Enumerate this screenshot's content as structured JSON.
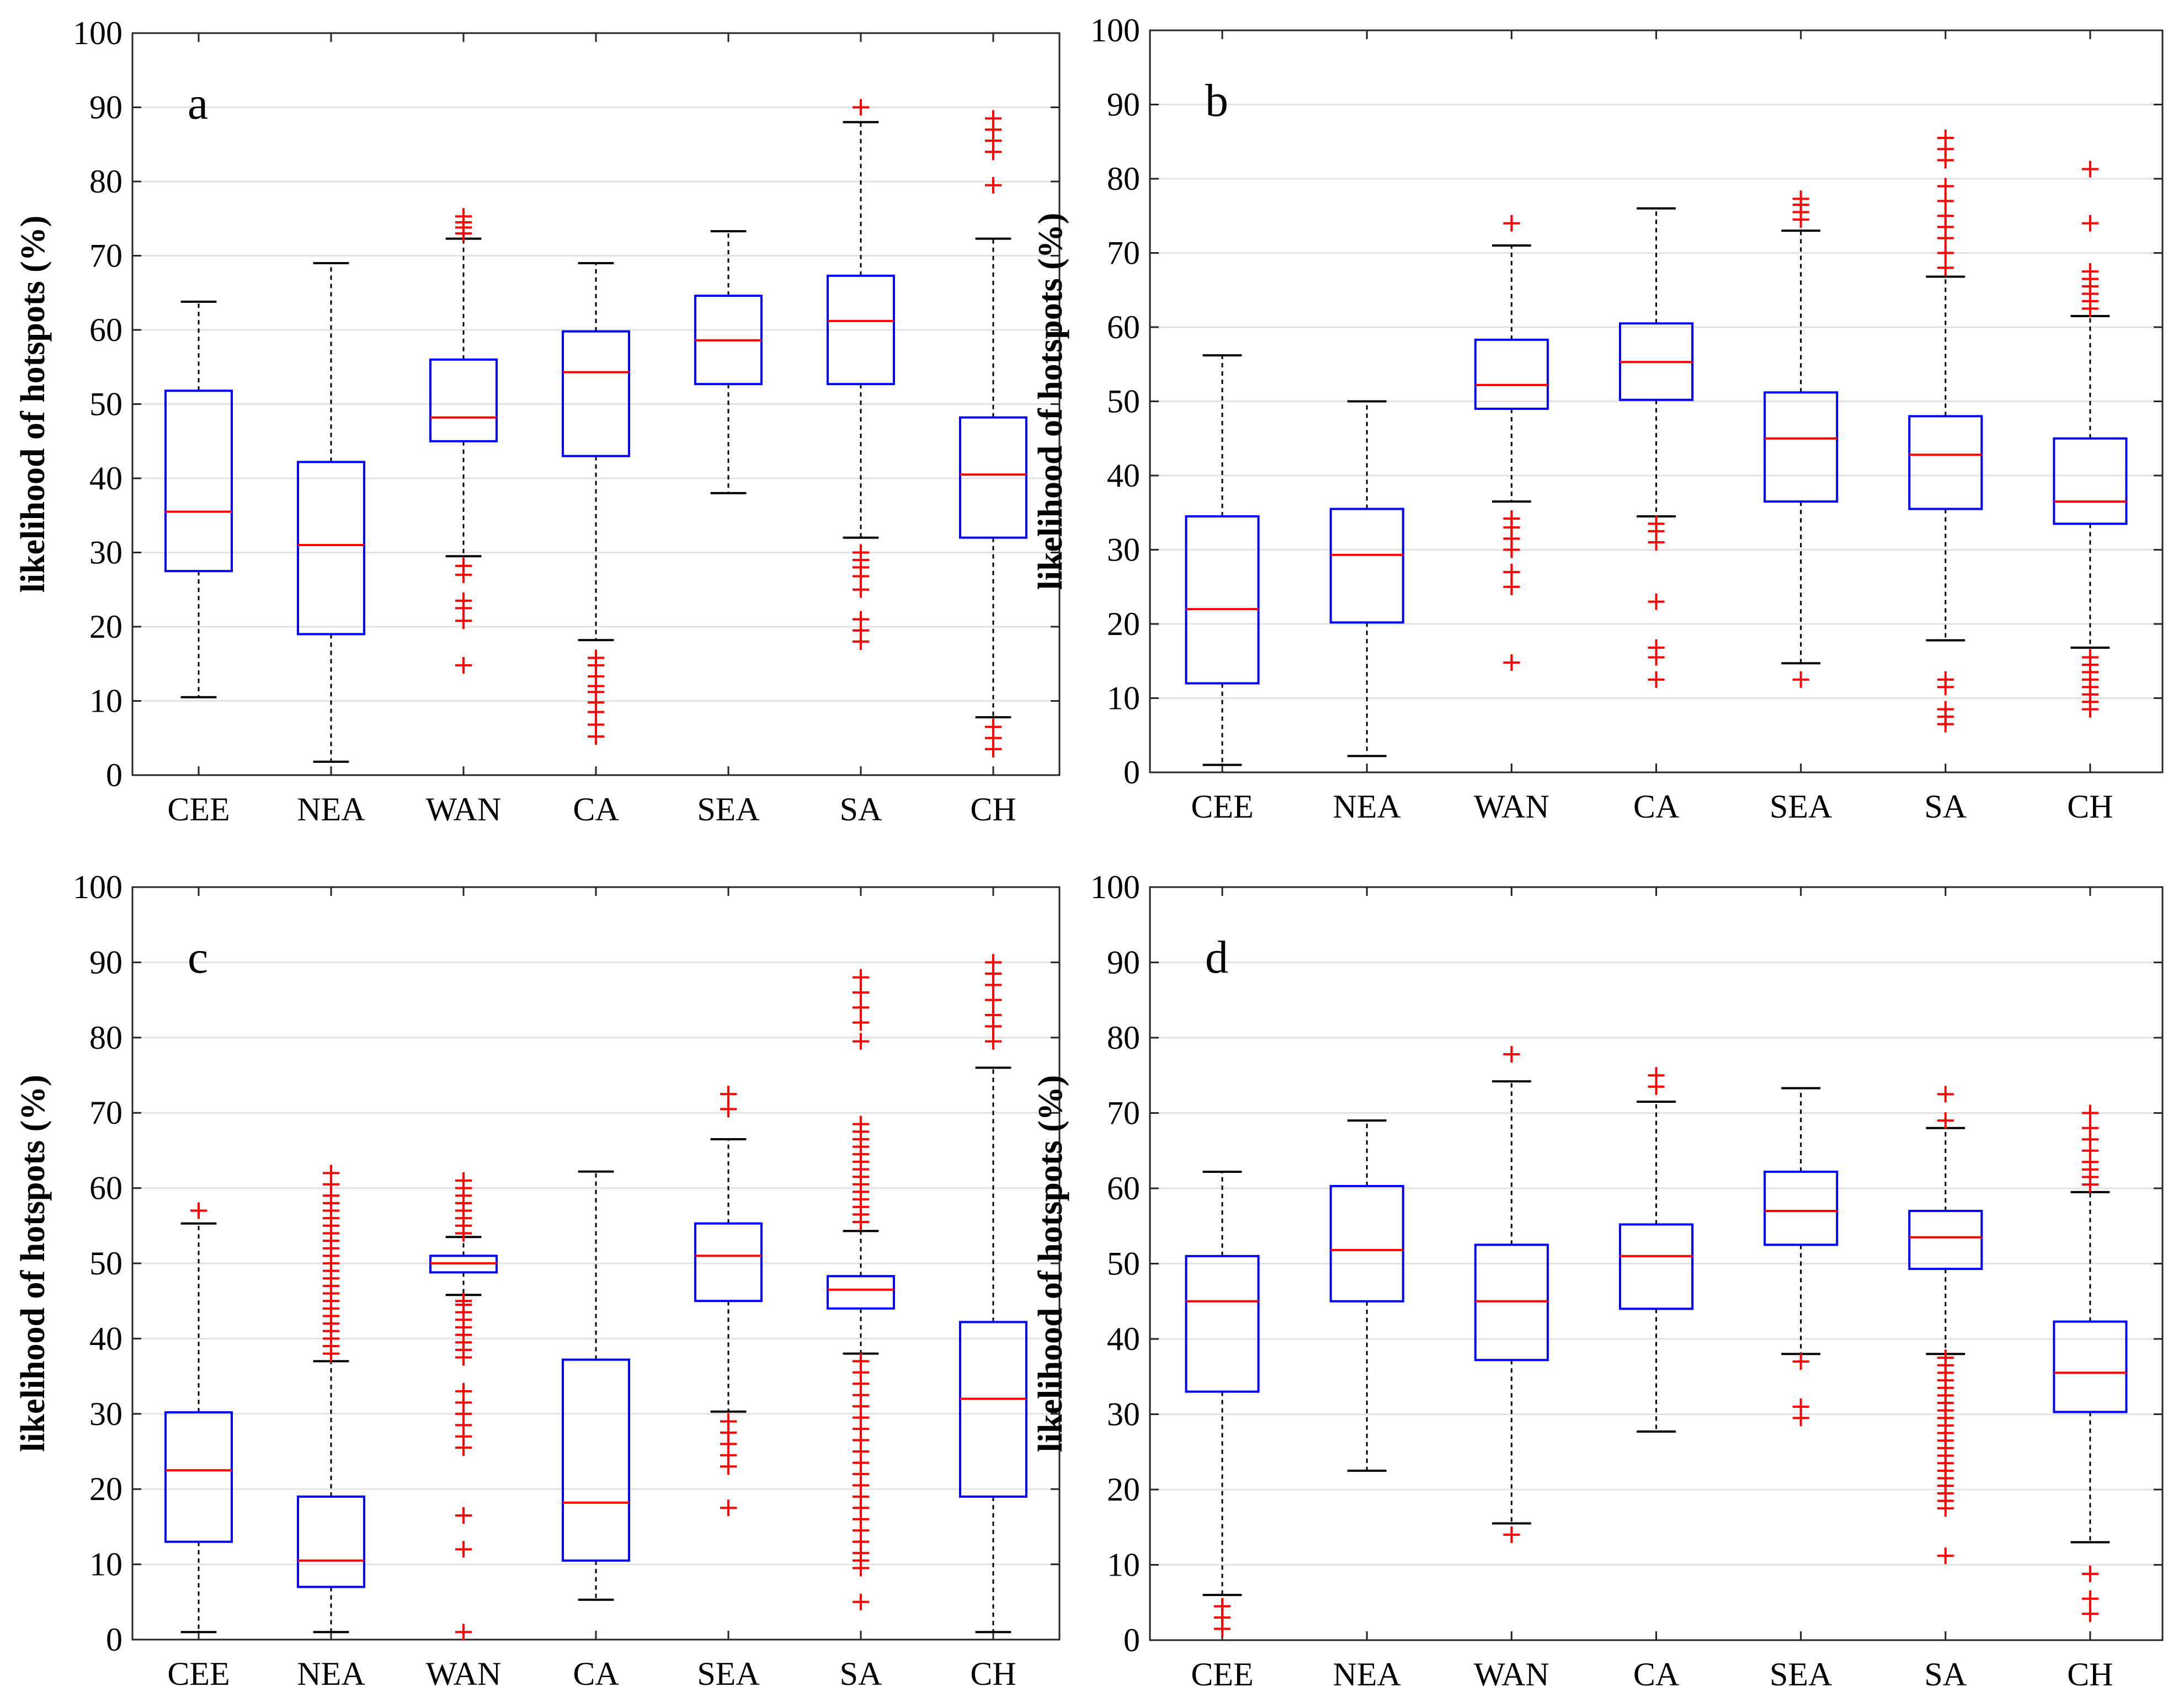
{
  "colors": {
    "box": "#0000ff",
    "median": "#ff0000",
    "outlier": "#ff0000",
    "whisker": "#000000",
    "grid": "#e2e2e2"
  },
  "chart_data": [
    {
      "type": "box",
      "panel_label": "a",
      "ylabel": "likelihood of hotspots (%)",
      "ylim": [
        0,
        100
      ],
      "yticks": [
        0,
        10,
        20,
        30,
        40,
        50,
        60,
        70,
        80,
        90,
        100
      ],
      "categories": [
        "CEE",
        "NEA",
        "WAN",
        "CA",
        "SEA",
        "SA",
        "CH"
      ],
      "boxes": [
        {
          "min": 10.5,
          "q1": 27.5,
          "median": 35.5,
          "q3": 51.8,
          "max": 63.8,
          "outliers": []
        },
        {
          "min": 1.8,
          "q1": 19.0,
          "median": 31.0,
          "q3": 42.2,
          "max": 69.0,
          "outliers": []
        },
        {
          "min": 29.5,
          "q1": 45.0,
          "median": 48.2,
          "q3": 56.0,
          "max": 72.3,
          "outliers": [
            14.8,
            20.8,
            22.5,
            23.5,
            27.0,
            28.2,
            73.0,
            73.8,
            74.5,
            75.3
          ]
        },
        {
          "min": 18.2,
          "q1": 43.0,
          "median": 54.3,
          "q3": 59.8,
          "max": 69.0,
          "outliers": [
            5.2,
            6.8,
            8.5,
            9.8,
            11.2,
            12.0,
            13.3,
            14.8,
            15.8
          ]
        },
        {
          "min": 38.0,
          "q1": 52.7,
          "median": 58.6,
          "q3": 64.6,
          "max": 73.3,
          "outliers": []
        },
        {
          "min": 32.0,
          "q1": 52.7,
          "median": 61.2,
          "q3": 67.3,
          "max": 88.0,
          "outliers": [
            18.0,
            19.5,
            21.0,
            25.0,
            26.8,
            28.0,
            29.0,
            30.0,
            90.0
          ]
        },
        {
          "min": 7.8,
          "q1": 32.0,
          "median": 40.5,
          "q3": 48.2,
          "max": 72.3,
          "outliers": [
            3.5,
            5.0,
            6.5,
            79.5,
            84.0,
            85.5,
            87.0,
            88.5
          ]
        }
      ]
    },
    {
      "type": "box",
      "panel_label": "b",
      "ylabel": "likelihood of hotspots (%)",
      "ylim": [
        0,
        100
      ],
      "yticks": [
        0,
        10,
        20,
        30,
        40,
        50,
        60,
        70,
        80,
        90,
        100
      ],
      "categories": [
        "CEE",
        "NEA",
        "WAN",
        "CA",
        "SEA",
        "SA",
        "CH"
      ],
      "boxes": [
        {
          "min": 1.0,
          "q1": 12.0,
          "median": 22.0,
          "q3": 34.5,
          "max": 56.2,
          "outliers": []
        },
        {
          "min": 2.2,
          "q1": 20.2,
          "median": 29.3,
          "q3": 35.5,
          "max": 50.0,
          "outliers": []
        },
        {
          "min": 36.5,
          "q1": 49.0,
          "median": 52.2,
          "q3": 58.3,
          "max": 71.0,
          "outliers": [
            14.8,
            25.0,
            27.0,
            30.0,
            31.5,
            33.0,
            34.2,
            74.0
          ]
        },
        {
          "min": 34.5,
          "q1": 50.2,
          "median": 55.3,
          "q3": 60.5,
          "max": 76.0,
          "outliers": [
            12.5,
            15.5,
            16.8,
            23.0,
            31.0,
            32.5,
            33.5
          ]
        },
        {
          "min": 14.7,
          "q1": 36.5,
          "median": 45.0,
          "q3": 51.2,
          "max": 73.0,
          "outliers": [
            12.5,
            74.5,
            75.5,
            76.5,
            77.3
          ]
        },
        {
          "min": 17.8,
          "q1": 35.5,
          "median": 42.8,
          "q3": 48.0,
          "max": 66.8,
          "outliers": [
            6.5,
            7.5,
            8.5,
            11.5,
            12.5,
            68.0,
            70.0,
            72.0,
            73.5,
            75.0,
            77.0,
            79.0,
            82.5,
            84.0,
            85.5
          ]
        },
        {
          "min": 16.8,
          "q1": 33.5,
          "median": 36.5,
          "q3": 45.0,
          "max": 61.5,
          "outliers": [
            8.5,
            9.5,
            10.5,
            11.5,
            12.5,
            13.5,
            14.5,
            15.5,
            62.5,
            63.5,
            64.5,
            65.5,
            66.5,
            67.5,
            74.0,
            81.3
          ]
        }
      ]
    },
    {
      "type": "box",
      "panel_label": "c",
      "ylabel": "likelihood of hotspots (%)",
      "ylim": [
        0,
        100
      ],
      "yticks": [
        0,
        10,
        20,
        30,
        40,
        50,
        60,
        70,
        80,
        90,
        100
      ],
      "categories": [
        "CEE",
        "NEA",
        "WAN",
        "CA",
        "SEA",
        "SA",
        "CH"
      ],
      "boxes": [
        {
          "min": 1.0,
          "q1": 13.0,
          "median": 22.5,
          "q3": 30.2,
          "max": 55.3,
          "outliers": [
            57.0
          ]
        },
        {
          "min": 1.0,
          "q1": 7.0,
          "median": 10.5,
          "q3": 19.0,
          "max": 37.0,
          "outliers": [
            38,
            39,
            40,
            41,
            42,
            43,
            44,
            45,
            46,
            47,
            48,
            49,
            50,
            51,
            52,
            53,
            54,
            55,
            56,
            57,
            58,
            59,
            60.5,
            62
          ]
        },
        {
          "min": 45.8,
          "q1": 48.8,
          "median": 50.0,
          "q3": 51.0,
          "max": 53.5,
          "outliers": [
            1.0,
            12.0,
            16.5,
            25.5,
            27.0,
            28.5,
            30.0,
            31.5,
            33.0,
            37.5,
            38.5,
            39.5,
            40.5,
            41.5,
            42.5,
            43.5,
            44.5,
            45.0,
            54.0,
            55.0,
            56.0,
            57.0,
            58.0,
            59.0,
            60.0,
            61.0
          ]
        },
        {
          "min": 5.3,
          "q1": 10.5,
          "median": 18.2,
          "q3": 37.2,
          "max": 62.2,
          "outliers": []
        },
        {
          "min": 30.3,
          "q1": 45.0,
          "median": 51.0,
          "q3": 55.3,
          "max": 66.5,
          "outliers": [
            17.5,
            23.0,
            24.5,
            26.0,
            27.5,
            29.0,
            70.5,
            72.5
          ]
        },
        {
          "min": 38.0,
          "q1": 44.0,
          "median": 46.5,
          "q3": 48.3,
          "max": 54.3,
          "outliers": [
            5.0,
            9.5,
            10.5,
            11.5,
            13.0,
            14.5,
            16.0,
            17.5,
            19.0,
            20.5,
            22.0,
            23.5,
            25.0,
            26.5,
            28.0,
            29.5,
            31.0,
            32.5,
            34.0,
            35.5,
            37.0,
            55.5,
            56.5,
            57.5,
            58.5,
            59.5,
            60.5,
            61.5,
            62.5,
            63.5,
            64.5,
            65.5,
            66.5,
            67.5,
            68.5,
            79.5,
            82.0,
            84.0,
            86.0,
            88.0
          ]
        },
        {
          "min": 1.0,
          "q1": 19.0,
          "median": 32.0,
          "q3": 42.2,
          "max": 76.0,
          "outliers": [
            79.5,
            81.5,
            83.0,
            85.0,
            87.0,
            88.5,
            90.0
          ]
        }
      ]
    },
    {
      "type": "box",
      "panel_label": "d",
      "ylabel": "likelihood of hotspots (%)",
      "ylim": [
        0,
        100
      ],
      "yticks": [
        0,
        10,
        20,
        30,
        40,
        50,
        60,
        70,
        80,
        90,
        100
      ],
      "categories": [
        "CEE",
        "NEA",
        "WAN",
        "CA",
        "SEA",
        "SA",
        "CH"
      ],
      "boxes": [
        {
          "min": 6.0,
          "q1": 33.0,
          "median": 45.0,
          "q3": 51.0,
          "max": 62.2,
          "outliers": [
            1.5,
            3.0,
            4.5
          ]
        },
        {
          "min": 22.5,
          "q1": 45.0,
          "median": 51.8,
          "q3": 60.3,
          "max": 69.0,
          "outliers": []
        },
        {
          "min": 15.5,
          "q1": 37.2,
          "median": 45.0,
          "q3": 52.5,
          "max": 74.2,
          "outliers": [
            14.0,
            77.8
          ]
        },
        {
          "min": 27.7,
          "q1": 44.0,
          "median": 51.0,
          "q3": 55.2,
          "max": 71.5,
          "outliers": [
            73.5,
            75.0
          ]
        },
        {
          "min": 38.0,
          "q1": 52.5,
          "median": 57.0,
          "q3": 62.2,
          "max": 73.3,
          "outliers": [
            29.5,
            31.0,
            37.0
          ]
        },
        {
          "min": 38.0,
          "q1": 49.3,
          "median": 53.5,
          "q3": 57.0,
          "max": 68.0,
          "outliers": [
            11.2,
            17.5,
            18.5,
            19.5,
            20.5,
            21.5,
            22.5,
            23.5,
            24.5,
            25.5,
            26.5,
            27.5,
            28.5,
            29.5,
            30.5,
            31.5,
            32.5,
            33.5,
            34.5,
            35.5,
            36.5,
            37.5,
            69.0,
            72.5
          ]
        },
        {
          "min": 13.0,
          "q1": 30.3,
          "median": 35.5,
          "q3": 42.3,
          "max": 59.5,
          "outliers": [
            3.5,
            5.5,
            8.8,
            60.5,
            61.5,
            62.5,
            63.5,
            65.0,
            66.5,
            68.0,
            70.0
          ]
        }
      ]
    }
  ]
}
